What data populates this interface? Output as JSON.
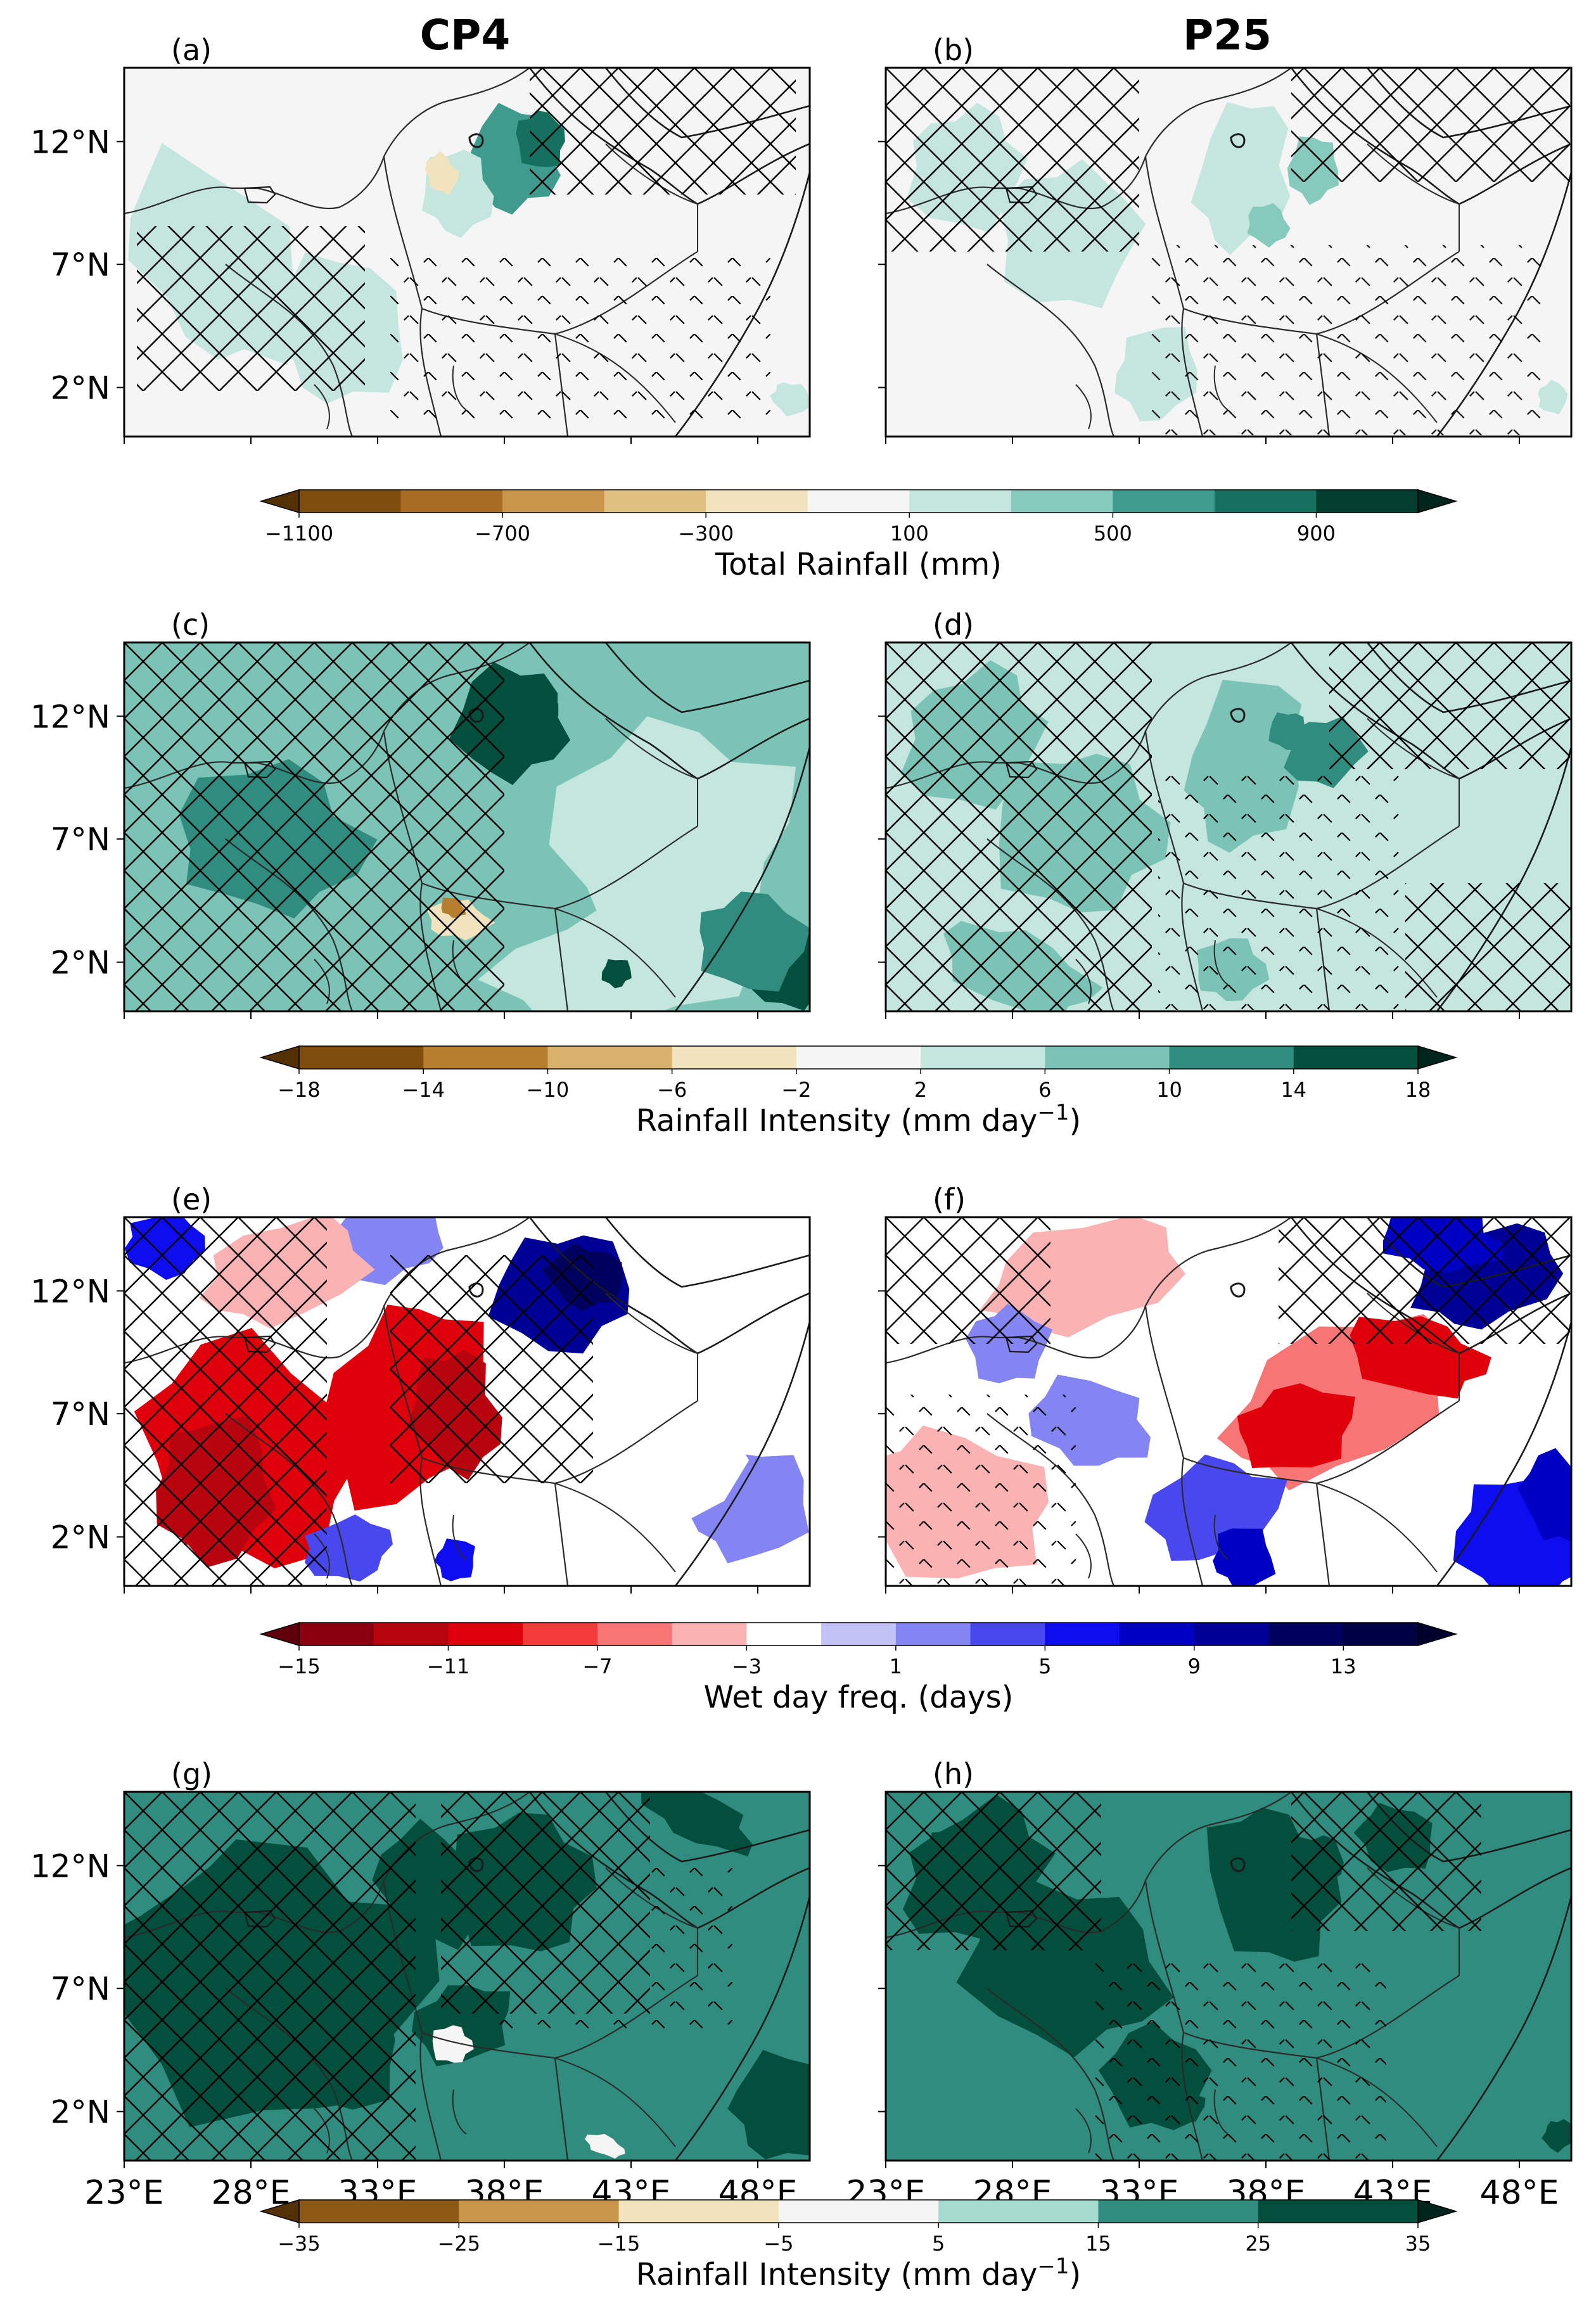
{
  "figure": {
    "column_titles": [
      "CP4",
      "P25"
    ],
    "lat_labels": [
      "12°N",
      "7°N",
      "2°N"
    ],
    "lon_labels": [
      "23°E",
      "28°E",
      "33°E",
      "38°E",
      "43°E",
      "48°E"
    ]
  },
  "chart_data": [
    {
      "type": "heatmap",
      "row": 0,
      "variable": "Total Rainfall",
      "colorbar": {
        "label": "Total Rainfall (mm)",
        "ticks": [
          "−1100",
          "−700",
          "−300",
          "100",
          "500",
          "900"
        ],
        "boundaries": [
          -1100,
          -900,
          -700,
          -500,
          -300,
          -100,
          100,
          300,
          500,
          700,
          900,
          1100
        ],
        "colors": [
          "#7f4e0c",
          "#a86d22",
          "#c9954a",
          "#e0c080",
          "#f1e3bd",
          "#f5f5f5",
          "#c4e6df",
          "#86c9bd",
          "#3f9b8d",
          "#16705f",
          "#023d30"
        ],
        "under_color": "#543005",
        "over_color": "#00261c"
      },
      "panels": [
        {
          "label": "(a)",
          "model": "CP4",
          "description": "Mostly small positive (green) changes; strongest over Ethiopian highlands near 12°N, 38°E; hatching over west and north."
        },
        {
          "label": "(b)",
          "model": "P25",
          "description": "Weak positive changes over the west and Ethiopian highlands; hatching over northwest and north."
        }
      ]
    },
    {
      "type": "heatmap",
      "row": 1,
      "variable": "Rainfall Intensity",
      "colorbar": {
        "label": "Rainfall Intensity (mm day",
        "label_superscript": "−1",
        "label_end": ")",
        "ticks": [
          "−18",
          "−14",
          "−10",
          "−6",
          "−2",
          "2",
          "6",
          "10",
          "14",
          "18"
        ],
        "boundaries": [
          -18,
          -14,
          -10,
          -6,
          -2,
          2,
          6,
          10,
          14,
          18
        ],
        "colors": [
          "#7f4e0c",
          "#b77e2f",
          "#d9b26e",
          "#f1e3bd",
          "#f5f5f5",
          "#c4e6df",
          "#7cc3b7",
          "#2f8c7e",
          "#044e3e"
        ],
        "under_color": "#543005",
        "over_color": "#00261c"
      },
      "panels": [
        {
          "label": "(c)",
          "model": "CP4",
          "description": "Widespread positive intensity change over the west and Ethiopia; strong increase in the southeast near 2°N, 48°E; small negatives near 4°N, 37°E."
        },
        {
          "label": "(d)",
          "model": "P25",
          "description": "Weaker positive changes over the west and Ethiopia; hatching over most land areas."
        }
      ]
    },
    {
      "type": "heatmap",
      "row": 2,
      "variable": "Wet day frequency",
      "colorbar": {
        "label": "Wet day freq. (days)",
        "ticks": [
          "−15",
          "−11",
          "−7",
          "−3",
          "1",
          "5",
          "9",
          "13"
        ],
        "boundaries": [
          -15,
          -13,
          -11,
          -9,
          -7,
          -5,
          -3,
          -1,
          1,
          3,
          5,
          7,
          9,
          11,
          13,
          15
        ],
        "colors": [
          "#8b0010",
          "#b8040f",
          "#e0000b",
          "#f53a3a",
          "#f87575",
          "#fbb2b2",
          "#ffffff",
          "#c2c2f7",
          "#8484f2",
          "#4848ee",
          "#0d0df0",
          "#0000c5",
          "#000096",
          "#00005f",
          "#000045"
        ],
        "under_color": "#5e000b",
        "over_color": "#00002c"
      },
      "panels": [
        {
          "label": "(e)",
          "model": "CP4",
          "description": "Large decreases (red) over the west and Ethiopian highlands; strong increase (blue) over northern Ethiopia/Red Sea coast near 13°N, 40°E."
        },
        {
          "label": "(f)",
          "model": "P25",
          "description": "Decreases over western Ethiopia near 8°N; increases over the Red Sea coast, Lake Victoria region and southern Somalia."
        }
      ]
    },
    {
      "type": "heatmap",
      "row": 3,
      "variable": "Rainfall Intensity",
      "colorbar": {
        "label": "Rainfall Intensity (mm day",
        "label_superscript": "−1",
        "label_end": ")",
        "ticks": [
          "−35",
          "−25",
          "−15",
          "−5",
          "5",
          "15",
          "25",
          "35"
        ],
        "boundaries": [
          -35,
          -25,
          -15,
          -5,
          5,
          15,
          25,
          35
        ],
        "colors": [
          "#8c5a14",
          "#c9954a",
          "#f1e3bd",
          "#f5f5f5",
          "#a6dbd0",
          "#2f8c7e",
          "#044e3e"
        ],
        "under_color": "#543005",
        "over_color": "#00261c"
      },
      "panels": [
        {
          "label": "(g)",
          "model": "CP4",
          "description": "Strong positive intensity change across the west, Ethiopian highlands and southeast; hatching over the west."
        },
        {
          "label": "(h)",
          "model": "P25",
          "description": "Moderate positive changes over the northwest and Ethiopian highlands; hatching over much of the domain."
        }
      ]
    }
  ]
}
